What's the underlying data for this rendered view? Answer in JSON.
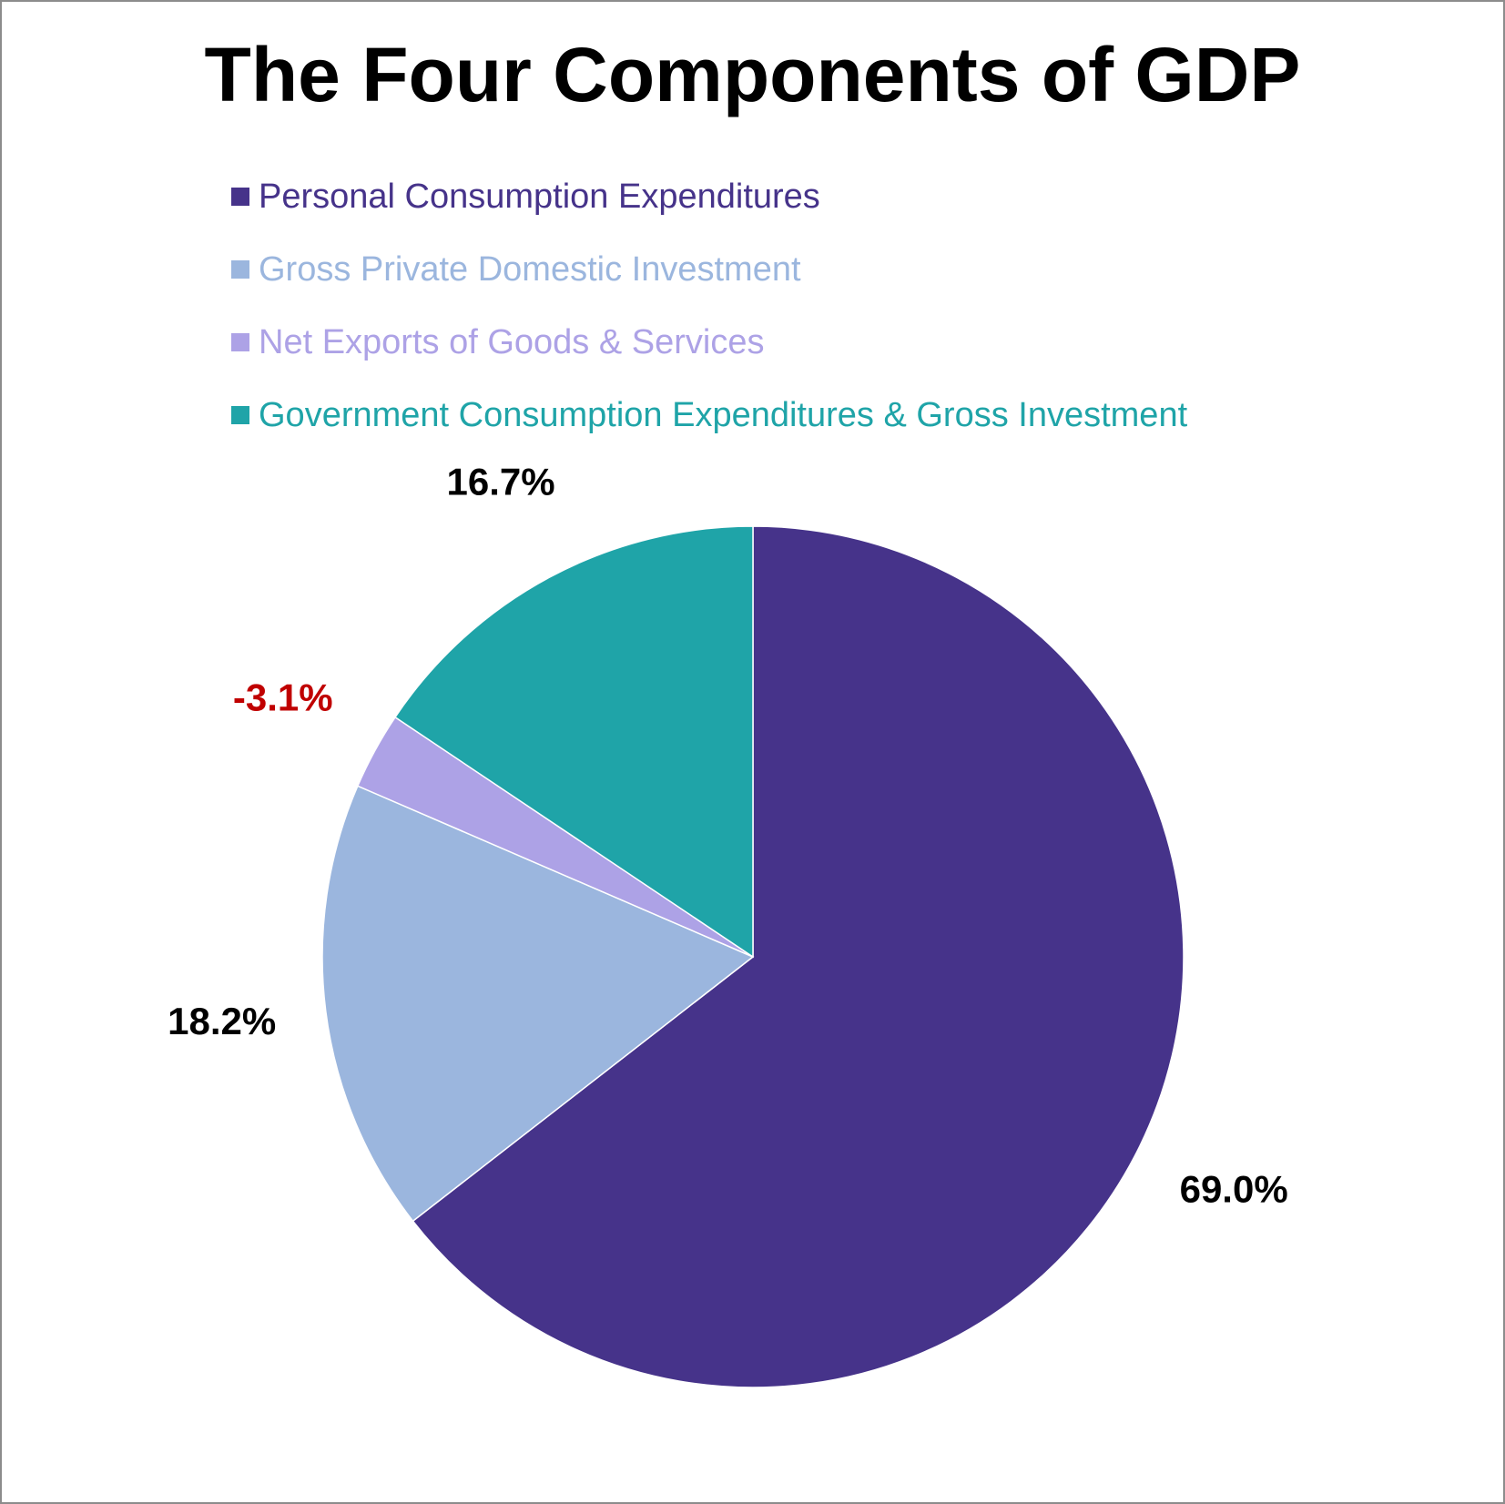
{
  "chart_data": {
    "type": "pie",
    "title": "The Four Components of GDP",
    "legend_position": "top",
    "slices": [
      {
        "name": "Personal Consumption Expenditures",
        "value": 69.0,
        "label": "69.0%",
        "color": "#46338a",
        "label_color": "#000000"
      },
      {
        "name": "Gross Private Domestic Investment",
        "value": 18.2,
        "label": "18.2%",
        "color": "#9bb6de",
        "label_color": "#000000"
      },
      {
        "name": "Net Exports of Goods & Services",
        "value": -3.1,
        "label": "-3.1%",
        "color": "#ada2e6",
        "label_color": "#c00000"
      },
      {
        "name": "Government Consumption Expenditures & Gross Investment",
        "value": 16.7,
        "label": "16.7%",
        "color": "#1fa4a8",
        "label_color": "#000000"
      }
    ]
  }
}
